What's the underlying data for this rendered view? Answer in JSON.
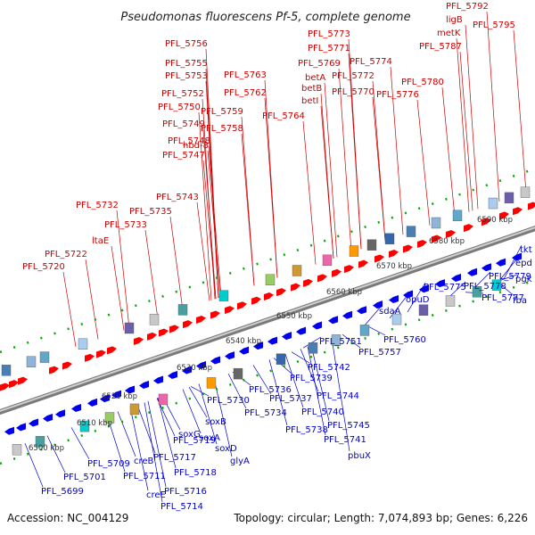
{
  "title": "Pseudomonas fluorescens Pf-5, complete genome",
  "accession": "Accession: NC_004129",
  "summary": "Topology: circular; Length: 7,074,893 bp; Genes: 6,226",
  "colors": {
    "forward_label": "#cc0000",
    "reverse_label": "#0000cc",
    "forward_gene": "#ff0000",
    "reverse_gene": "#0000ee",
    "backbone": "#999999",
    "contig_dot": "#00aa00"
  },
  "kbp_ticks": [
    "6500 kbp",
    "6510 kbp",
    "6520 kbp",
    "6530 kbp",
    "6540 kbp",
    "6550 kbp",
    "6560 kbp",
    "6570 kbp",
    "6580 kbp",
    "6590 kbp"
  ],
  "forward_labels": [
    "PFL_5792",
    "ligB",
    "metK",
    "PFL_5795",
    "PFL_5773",
    "PFL_5771",
    "PFL_5787",
    "PFL_5769",
    "PFL_5774",
    "betA",
    "PFL_5772",
    "PFL_5780",
    "betB",
    "PFL_5770",
    "PFL_5776",
    "betI",
    "PFL_5756",
    "PFL_5755",
    "PFL_5763",
    "PFL_5753",
    "PFL_5762",
    "PFL_5752",
    "PFL_5759",
    "PFL_5764",
    "PFL_5750",
    "PFL_5758",
    "PFL_5749",
    "PFL_5748",
    "hbd-8",
    "PFL_5747",
    "PFL_5743",
    "PFL_5732",
    "PFL_5735",
    "PFL_5733",
    "ltaE",
    "PFL_5722",
    "PFL_5720"
  ],
  "reverse_labels": [
    "tkt",
    "epd",
    "pgk",
    "fba",
    "PFL_5779",
    "PFL_5775",
    "PFL_5778",
    "PFL_5777",
    "opuD",
    "sdaA",
    "PFL_5760",
    "PFL_5751",
    "PFL_5757",
    "PFL_5742",
    "PFL_5739",
    "PFL_5744",
    "PFL_5737",
    "PFL_5740",
    "PFL_5736",
    "PFL_5730",
    "PFL_5734",
    "PFL_5745",
    "PFL_5738",
    "PFL_5741",
    "pbuX",
    "soxB",
    "soxG",
    "soxA",
    "soxD",
    "glyA",
    "PFL_5719",
    "PFL_5717",
    "PFL_5718",
    "PFL_5716",
    "creB",
    "creE",
    "PFL_5714",
    "PFL_5711",
    "PFL_5709",
    "PFL_5701",
    "PFL_5699"
  ]
}
